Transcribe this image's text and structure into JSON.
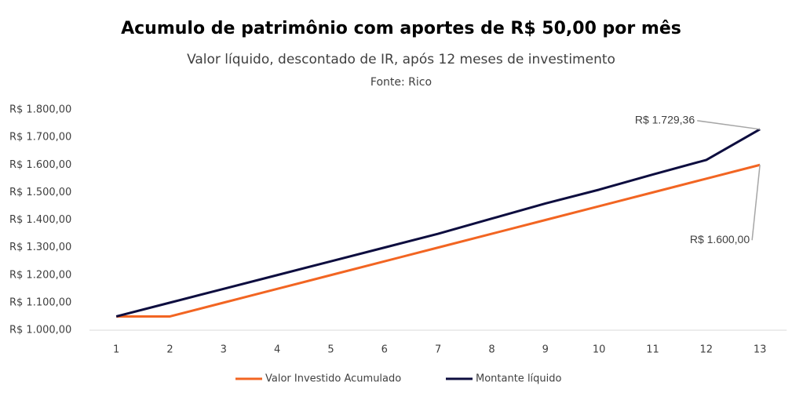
{
  "chart_data": {
    "type": "line",
    "title": "Acumulo de patrimônio com aportes de R$ 50,00 por mês",
    "subtitle": "Valor líquido, descontado de IR, após 12 meses de investimento",
    "source": "Fonte: Rico",
    "categories": [
      "1",
      "2",
      "3",
      "4",
      "5",
      "6",
      "7",
      "8",
      "9",
      "10",
      "11",
      "12",
      "13"
    ],
    "series": [
      {
        "name": "Valor Investido Acumulado",
        "color": "#f26522",
        "values": [
          1050,
          1050,
          1100,
          1150,
          1200,
          1250,
          1300,
          1350,
          1400,
          1450,
          1500,
          1550,
          1600
        ],
        "value_labels": [
          null,
          null,
          null,
          null,
          null,
          null,
          null,
          null,
          null,
          null,
          null,
          null,
          "R$ 1.600,00"
        ]
      },
      {
        "name": "Montante líquido",
        "color": "#0d0d3f",
        "values": [
          1050,
          1100,
          1150,
          1200,
          1250,
          1300,
          1350,
          1405,
          1460,
          1510,
          1565,
          1618,
          1729.36
        ],
        "value_labels": [
          null,
          null,
          null,
          null,
          null,
          null,
          null,
          null,
          null,
          null,
          null,
          null,
          "R$ 1.729,36"
        ]
      }
    ],
    "ylim": [
      1000,
      1800
    ],
    "yticks": [
      {
        "value": 1000,
        "label": "R$ 1.000,00"
      },
      {
        "value": 1100,
        "label": "R$ 1.100,00"
      },
      {
        "value": 1200,
        "label": "R$ 1.200,00"
      },
      {
        "value": 1300,
        "label": "R$ 1.300,00"
      },
      {
        "value": 1400,
        "label": "R$ 1.400,00"
      },
      {
        "value": 1500,
        "label": "R$ 1.500,00"
      },
      {
        "value": 1600,
        "label": "R$ 1.600,00"
      },
      {
        "value": 1700,
        "label": "R$ 1.700,00"
      },
      {
        "value": 1800,
        "label": "R$ 1.800,00"
      }
    ],
    "grid": false,
    "legend": "bottom"
  }
}
